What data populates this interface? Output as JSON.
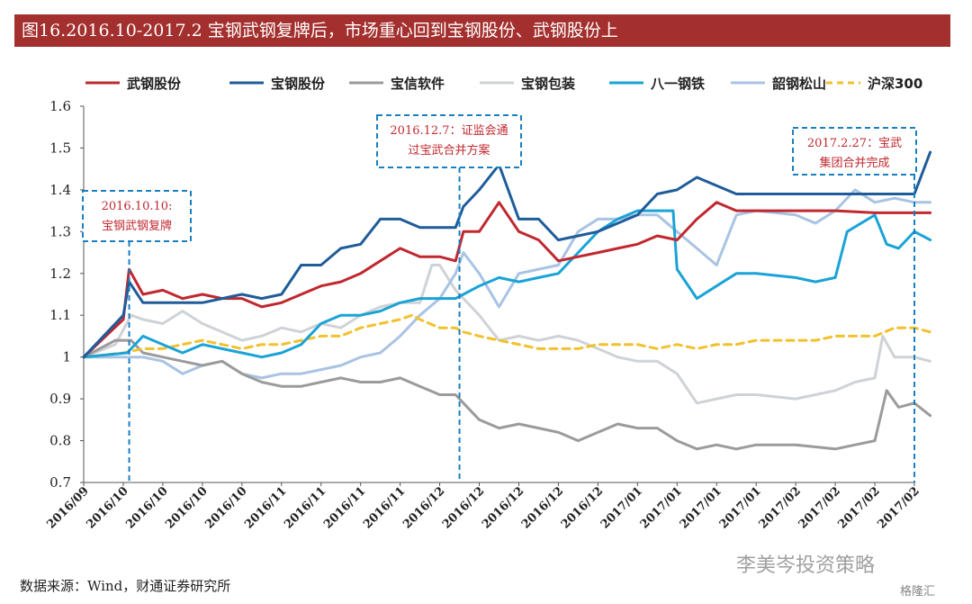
{
  "title": "图16.2016.10-2017.2 宝钢武钢复牌后，市场重心回到宝钢股份、武钢股份上",
  "source": "数据来源：Wind，财通证券研究所",
  "watermark": "李美岑投资策略",
  "brand": "格隆汇",
  "chart_data": {
    "type": "line",
    "title": "",
    "xlabel": "",
    "ylabel": "",
    "ylim": [
      0.7,
      1.6
    ],
    "yticks": [
      "0.7",
      "0.8",
      "0.9",
      "1",
      "1.1",
      "1.2",
      "1.3",
      "1.4",
      "1.5",
      "1.6"
    ],
    "categories": [
      "2016/09",
      "2016/10",
      "2016/10",
      "2016/10",
      "2016/10",
      "2016/11",
      "2016/11",
      "2016/11",
      "2016/11",
      "2016/12",
      "2016/12",
      "2016/12",
      "2016/12",
      "2016/12",
      "2017/01",
      "2017/01",
      "2017/01",
      "2017/01",
      "2017/02",
      "2017/02",
      "2017/02",
      "2017/02"
    ],
    "legend_position": "top",
    "series": [
      {
        "name": "武钢股份",
        "color": "#c0282f",
        "dashed": false,
        "points": [
          [
            0,
            1.0
          ],
          [
            1,
            1.09
          ],
          [
            1.15,
            1.21
          ],
          [
            1.5,
            1.15
          ],
          [
            2,
            1.16
          ],
          [
            2.5,
            1.14
          ],
          [
            3,
            1.15
          ],
          [
            3.5,
            1.14
          ],
          [
            4,
            1.14
          ],
          [
            4.5,
            1.12
          ],
          [
            5,
            1.13
          ],
          [
            5.5,
            1.15
          ],
          [
            6,
            1.17
          ],
          [
            6.5,
            1.18
          ],
          [
            7,
            1.2
          ],
          [
            7.5,
            1.23
          ],
          [
            8,
            1.26
          ],
          [
            8.5,
            1.24
          ],
          [
            9,
            1.24
          ],
          [
            9.4,
            1.23
          ],
          [
            9.6,
            1.3
          ],
          [
            10,
            1.3
          ],
          [
            10.5,
            1.37
          ],
          [
            11,
            1.3
          ],
          [
            11.5,
            1.28
          ],
          [
            12,
            1.23
          ],
          [
            12.5,
            1.24
          ],
          [
            13,
            1.25
          ],
          [
            13.5,
            1.26
          ],
          [
            14,
            1.27
          ],
          [
            14.5,
            1.29
          ],
          [
            15,
            1.28
          ],
          [
            15.5,
            1.33
          ],
          [
            16,
            1.37
          ],
          [
            16.5,
            1.35
          ],
          [
            17,
            1.35
          ],
          [
            18,
            1.35
          ],
          [
            19,
            1.35
          ],
          [
            20,
            1.345
          ],
          [
            21,
            1.345
          ],
          [
            21.4,
            1.345
          ]
        ]
      },
      {
        "name": "宝钢股份",
        "color": "#1f5c99",
        "dashed": false,
        "points": [
          [
            0,
            1.0
          ],
          [
            1,
            1.1
          ],
          [
            1.15,
            1.18
          ],
          [
            1.5,
            1.13
          ],
          [
            2,
            1.13
          ],
          [
            2.5,
            1.13
          ],
          [
            3,
            1.13
          ],
          [
            3.5,
            1.14
          ],
          [
            4,
            1.15
          ],
          [
            4.5,
            1.14
          ],
          [
            5,
            1.15
          ],
          [
            5.5,
            1.22
          ],
          [
            6,
            1.22
          ],
          [
            6.5,
            1.26
          ],
          [
            7,
            1.27
          ],
          [
            7.5,
            1.33
          ],
          [
            8,
            1.33
          ],
          [
            8.5,
            1.31
          ],
          [
            9,
            1.31
          ],
          [
            9.4,
            1.31
          ],
          [
            9.6,
            1.36
          ],
          [
            10,
            1.4
          ],
          [
            10.5,
            1.46
          ],
          [
            11,
            1.33
          ],
          [
            11.5,
            1.33
          ],
          [
            12,
            1.28
          ],
          [
            12.5,
            1.29
          ],
          [
            13,
            1.3
          ],
          [
            13.5,
            1.32
          ],
          [
            14,
            1.34
          ],
          [
            14.5,
            1.39
          ],
          [
            15,
            1.4
          ],
          [
            15.5,
            1.43
          ],
          [
            16,
            1.41
          ],
          [
            16.5,
            1.39
          ],
          [
            17,
            1.39
          ],
          [
            18,
            1.39
          ],
          [
            19,
            1.39
          ],
          [
            20,
            1.39
          ],
          [
            21,
            1.39
          ],
          [
            21.4,
            1.49
          ]
        ]
      },
      {
        "name": "宝信软件",
        "color": "#9b9b9b",
        "dashed": false,
        "points": [
          [
            0,
            1.0
          ],
          [
            0.8,
            1.04
          ],
          [
            1.2,
            1.04
          ],
          [
            1.5,
            1.01
          ],
          [
            2,
            1.0
          ],
          [
            2.5,
            0.99
          ],
          [
            3,
            0.98
          ],
          [
            3.5,
            0.99
          ],
          [
            4,
            0.96
          ],
          [
            4.5,
            0.94
          ],
          [
            5,
            0.93
          ],
          [
            5.5,
            0.93
          ],
          [
            6,
            0.94
          ],
          [
            6.5,
            0.95
          ],
          [
            7,
            0.94
          ],
          [
            7.5,
            0.94
          ],
          [
            8,
            0.95
          ],
          [
            8.5,
            0.93
          ],
          [
            9,
            0.91
          ],
          [
            9.4,
            0.91
          ],
          [
            9.6,
            0.89
          ],
          [
            10,
            0.85
          ],
          [
            10.5,
            0.83
          ],
          [
            11,
            0.84
          ],
          [
            11.5,
            0.83
          ],
          [
            12,
            0.82
          ],
          [
            12.5,
            0.8
          ],
          [
            13,
            0.82
          ],
          [
            13.5,
            0.84
          ],
          [
            14,
            0.83
          ],
          [
            14.5,
            0.83
          ],
          [
            15,
            0.8
          ],
          [
            15.5,
            0.78
          ],
          [
            16,
            0.79
          ],
          [
            16.5,
            0.78
          ],
          [
            17,
            0.79
          ],
          [
            18,
            0.79
          ],
          [
            19,
            0.78
          ],
          [
            19.5,
            0.79
          ],
          [
            20,
            0.8
          ],
          [
            20.3,
            0.92
          ],
          [
            20.6,
            0.88
          ],
          [
            21,
            0.89
          ],
          [
            21.4,
            0.86
          ]
        ]
      },
      {
        "name": "宝钢包装",
        "color": "#cfd2d6",
        "dashed": false,
        "points": [
          [
            0,
            1.0
          ],
          [
            0.8,
            1.03
          ],
          [
            1.2,
            1.1
          ],
          [
            1.5,
            1.09
          ],
          [
            2,
            1.08
          ],
          [
            2.5,
            1.11
          ],
          [
            3,
            1.08
          ],
          [
            3.5,
            1.06
          ],
          [
            4,
            1.04
          ],
          [
            4.5,
            1.05
          ],
          [
            5,
            1.07
          ],
          [
            5.5,
            1.06
          ],
          [
            6,
            1.08
          ],
          [
            6.5,
            1.07
          ],
          [
            7,
            1.1
          ],
          [
            7.5,
            1.12
          ],
          [
            8,
            1.13
          ],
          [
            8.5,
            1.13
          ],
          [
            8.8,
            1.22
          ],
          [
            9,
            1.22
          ],
          [
            9.4,
            1.16
          ],
          [
            9.6,
            1.14
          ],
          [
            10,
            1.1
          ],
          [
            10.5,
            1.04
          ],
          [
            11,
            1.05
          ],
          [
            11.5,
            1.04
          ],
          [
            12,
            1.05
          ],
          [
            12.5,
            1.04
          ],
          [
            13,
            1.02
          ],
          [
            13.5,
            1.0
          ],
          [
            14,
            0.99
          ],
          [
            14.5,
            0.99
          ],
          [
            15,
            0.96
          ],
          [
            15.5,
            0.89
          ],
          [
            16,
            0.9
          ],
          [
            16.5,
            0.91
          ],
          [
            17,
            0.91
          ],
          [
            18,
            0.9
          ],
          [
            18.5,
            0.91
          ],
          [
            19,
            0.92
          ],
          [
            19.5,
            0.94
          ],
          [
            20,
            0.95
          ],
          [
            20.2,
            1.05
          ],
          [
            20.5,
            1.0
          ],
          [
            21,
            1.0
          ],
          [
            21.4,
            0.99
          ]
        ]
      },
      {
        "name": "八一钢铁",
        "color": "#1aa3d6",
        "dashed": false,
        "points": [
          [
            0,
            1.0
          ],
          [
            1.1,
            1.01
          ],
          [
            1.5,
            1.05
          ],
          [
            2,
            1.03
          ],
          [
            2.5,
            1.01
          ],
          [
            3,
            1.03
          ],
          [
            3.5,
            1.02
          ],
          [
            4,
            1.01
          ],
          [
            4.5,
            1.0
          ],
          [
            5,
            1.01
          ],
          [
            5.5,
            1.03
          ],
          [
            6,
            1.08
          ],
          [
            6.5,
            1.1
          ],
          [
            7,
            1.1
          ],
          [
            7.5,
            1.11
          ],
          [
            8,
            1.13
          ],
          [
            8.5,
            1.14
          ],
          [
            9,
            1.14
          ],
          [
            9.4,
            1.14
          ],
          [
            9.6,
            1.15
          ],
          [
            10,
            1.17
          ],
          [
            10.5,
            1.19
          ],
          [
            11,
            1.18
          ],
          [
            11.5,
            1.19
          ],
          [
            12,
            1.2
          ],
          [
            12.5,
            1.25
          ],
          [
            13,
            1.3
          ],
          [
            13.5,
            1.33
          ],
          [
            14,
            1.35
          ],
          [
            14.5,
            1.35
          ],
          [
            14.9,
            1.35
          ],
          [
            15,
            1.21
          ],
          [
            15.5,
            1.14
          ],
          [
            16,
            1.17
          ],
          [
            16.5,
            1.2
          ],
          [
            17,
            1.2
          ],
          [
            18,
            1.19
          ],
          [
            18.5,
            1.18
          ],
          [
            19,
            1.19
          ],
          [
            19.3,
            1.3
          ],
          [
            20,
            1.34
          ],
          [
            20.3,
            1.27
          ],
          [
            20.6,
            1.26
          ],
          [
            21,
            1.3
          ],
          [
            21.4,
            1.28
          ]
        ]
      },
      {
        "name": "韶钢松山",
        "color": "#a9c3e3",
        "dashed": false,
        "points": [
          [
            0,
            1.0
          ],
          [
            1,
            1.0
          ],
          [
            1.5,
            1.0
          ],
          [
            2,
            0.99
          ],
          [
            2.5,
            0.96
          ],
          [
            3,
            0.98
          ],
          [
            3.5,
            0.99
          ],
          [
            4,
            0.96
          ],
          [
            4.5,
            0.95
          ],
          [
            5,
            0.96
          ],
          [
            5.5,
            0.96
          ],
          [
            6,
            0.97
          ],
          [
            6.5,
            0.98
          ],
          [
            7,
            1.0
          ],
          [
            7.5,
            1.01
          ],
          [
            8,
            1.05
          ],
          [
            8.5,
            1.1
          ],
          [
            9,
            1.14
          ],
          [
            9.4,
            1.2
          ],
          [
            9.6,
            1.25
          ],
          [
            10,
            1.2
          ],
          [
            10.5,
            1.12
          ],
          [
            11,
            1.2
          ],
          [
            11.5,
            1.21
          ],
          [
            12,
            1.22
          ],
          [
            12.5,
            1.3
          ],
          [
            13,
            1.33
          ],
          [
            13.5,
            1.33
          ],
          [
            14,
            1.34
          ],
          [
            14.5,
            1.34
          ],
          [
            15,
            1.3
          ],
          [
            15.5,
            1.26
          ],
          [
            16,
            1.22
          ],
          [
            16.5,
            1.34
          ],
          [
            17,
            1.35
          ],
          [
            18,
            1.34
          ],
          [
            18.5,
            1.32
          ],
          [
            19,
            1.35
          ],
          [
            19.5,
            1.4
          ],
          [
            20,
            1.37
          ],
          [
            20.5,
            1.38
          ],
          [
            21,
            1.37
          ],
          [
            21.4,
            1.37
          ]
        ]
      },
      {
        "name": "沪深300",
        "color": "#f2c12e",
        "dashed": true,
        "points": [
          [
            0,
            1.0
          ],
          [
            1,
            1.01
          ],
          [
            1.5,
            1.02
          ],
          [
            2,
            1.02
          ],
          [
            2.5,
            1.03
          ],
          [
            3,
            1.04
          ],
          [
            3.5,
            1.03
          ],
          [
            4,
            1.02
          ],
          [
            4.5,
            1.03
          ],
          [
            5,
            1.03
          ],
          [
            5.5,
            1.04
          ],
          [
            6,
            1.05
          ],
          [
            6.5,
            1.05
          ],
          [
            7,
            1.07
          ],
          [
            7.5,
            1.08
          ],
          [
            8,
            1.09
          ],
          [
            8.3,
            1.1
          ],
          [
            8.5,
            1.09
          ],
          [
            9,
            1.07
          ],
          [
            9.4,
            1.07
          ],
          [
            9.6,
            1.06
          ],
          [
            10,
            1.05
          ],
          [
            10.5,
            1.04
          ],
          [
            11,
            1.03
          ],
          [
            11.5,
            1.02
          ],
          [
            12,
            1.02
          ],
          [
            12.5,
            1.02
          ],
          [
            13,
            1.03
          ],
          [
            13.5,
            1.03
          ],
          [
            14,
            1.03
          ],
          [
            14.5,
            1.02
          ],
          [
            15,
            1.03
          ],
          [
            15.5,
            1.02
          ],
          [
            16,
            1.03
          ],
          [
            16.5,
            1.03
          ],
          [
            17,
            1.04
          ],
          [
            18,
            1.04
          ],
          [
            18.5,
            1.04
          ],
          [
            19,
            1.05
          ],
          [
            19.5,
            1.05
          ],
          [
            20,
            1.05
          ],
          [
            20.5,
            1.07
          ],
          [
            21,
            1.07
          ],
          [
            21.4,
            1.06
          ]
        ]
      }
    ],
    "annotations": [
      {
        "label_lines": [
          "2016.10.10:",
          "宝钢武钢复牌"
        ],
        "x": 1.15
      },
      {
        "label_lines": [
          "2016.12.7：证监会通",
          "过宝武合并方案"
        ],
        "x": 9.5
      },
      {
        "label_lines": [
          "2017.2.27：宝武",
          "集团合并完成"
        ],
        "x": 21.0
      }
    ]
  }
}
